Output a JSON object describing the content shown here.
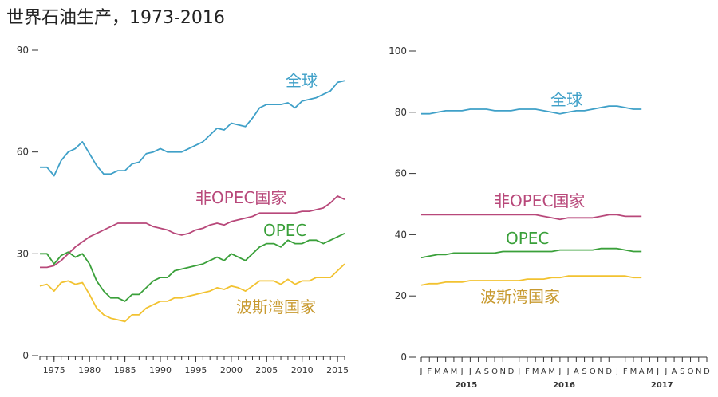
{
  "title": "世界石油生产，1973-2016",
  "chart_data": [
    {
      "type": "line",
      "x": [
        1973,
        1974,
        1975,
        1976,
        1977,
        1978,
        1979,
        1980,
        1981,
        1982,
        1983,
        1984,
        1985,
        1986,
        1987,
        1988,
        1989,
        1990,
        1991,
        1992,
        1993,
        1994,
        1995,
        1996,
        1997,
        1998,
        1999,
        2000,
        2001,
        2002,
        2003,
        2004,
        2005,
        2006,
        2007,
        2008,
        2009,
        2010,
        2011,
        2012,
        2013,
        2014,
        2015,
        2016
      ],
      "xticks": [
        1975,
        1980,
        1985,
        1990,
        1995,
        2000,
        2005,
        2010,
        2015
      ],
      "ylim": [
        0,
        90
      ],
      "yticks": [
        0,
        30,
        60,
        90
      ],
      "series": [
        {
          "name": "全球",
          "color": "#3fa0c8",
          "values": [
            55.5,
            55.5,
            53,
            57.5,
            60,
            61,
            63,
            59.5,
            56,
            53.5,
            53.5,
            54.5,
            54.5,
            56.5,
            57,
            59.5,
            60,
            61,
            60,
            60,
            60,
            61,
            62,
            63,
            65,
            67,
            66.5,
            68.5,
            68,
            67.5,
            70,
            73,
            74,
            74,
            74,
            74.5,
            73,
            75,
            75.5,
            76,
            77,
            78,
            80.5,
            81
          ]
        },
        {
          "name": "非OPEC国家",
          "color": "#b8487a",
          "values": [
            26,
            26,
            26.5,
            28,
            30,
            32,
            33.5,
            35,
            36,
            37,
            38,
            39,
            39,
            39,
            39,
            39,
            38,
            37.5,
            37,
            36,
            35.5,
            36,
            37,
            37.5,
            38.5,
            39,
            38.5,
            39.5,
            40,
            40.5,
            41,
            42,
            42,
            42,
            42,
            42,
            42,
            42.5,
            42.5,
            43,
            43.5,
            45,
            47,
            46
          ]
        },
        {
          "name": "OPEC",
          "color": "#3aa03a",
          "values": [
            30,
            30,
            27,
            29.5,
            30.5,
            29,
            30,
            27,
            22,
            19,
            17,
            17,
            16,
            18,
            18,
            20,
            22,
            23,
            23,
            25,
            25.5,
            26,
            26.5,
            27,
            28,
            29,
            28,
            30,
            29,
            28,
            30,
            32,
            33,
            33,
            32,
            34,
            33,
            33,
            34,
            34,
            33,
            34,
            35,
            36
          ]
        },
        {
          "name": "波斯湾国家",
          "color": "#f2c230",
          "values": [
            20.5,
            21,
            19,
            21.5,
            22,
            21,
            21.5,
            18,
            14,
            12,
            11,
            10.5,
            10,
            12,
            12,
            14,
            15,
            16,
            16,
            17,
            17,
            17.5,
            18,
            18.5,
            19,
            20,
            19.5,
            20.5,
            20,
            19,
            20.5,
            22,
            22,
            22,
            21,
            22.5,
            21,
            22,
            22,
            23,
            23,
            23,
            25,
            27
          ]
        }
      ],
      "annotations": [
        {
          "text": "全球",
          "color": "#3fa0c8"
        },
        {
          "text": "非OPEC国家",
          "color": "#b8487a"
        },
        {
          "text": "OPEC",
          "color": "#3aa03a"
        },
        {
          "text": "波斯湾国家",
          "color": "#c89a30"
        }
      ]
    },
    {
      "type": "line",
      "months": [
        "J",
        "F",
        "M",
        "A",
        "M",
        "J",
        "J",
        "A",
        "S",
        "O",
        "N",
        "D",
        "J",
        "F",
        "M",
        "A",
        "M",
        "J",
        "J",
        "A",
        "S",
        "O",
        "N",
        "D",
        "J",
        "F",
        "M",
        "A",
        "M",
        "J",
        "J",
        "A",
        "S",
        "O",
        "N",
        "D"
      ],
      "year_labels": [
        "2015",
        "2016",
        "2017"
      ],
      "ylim": [
        0,
        100
      ],
      "yticks": [
        0,
        20,
        40,
        60,
        80,
        100
      ],
      "series": [
        {
          "name": "全球",
          "color": "#3fa0c8",
          "values": [
            79.5,
            79.5,
            80,
            80.5,
            80.5,
            80.5,
            81,
            81,
            81,
            80.5,
            80.5,
            80.5,
            81,
            81,
            81,
            80.5,
            80,
            79.5,
            80,
            80.5,
            80.5,
            81,
            81.5,
            82,
            82,
            81.5,
            81,
            81
          ]
        },
        {
          "name": "非OPEC国家",
          "color": "#b8487a",
          "values": [
            46.5,
            46.5,
            46.5,
            46.5,
            46.5,
            46.5,
            46.5,
            46.5,
            46.5,
            46.5,
            46.5,
            46.5,
            46.5,
            46.5,
            46.5,
            46,
            45.5,
            45,
            45.5,
            45.5,
            45.5,
            45.5,
            46,
            46.5,
            46.5,
            46,
            46,
            46
          ]
        },
        {
          "name": "OPEC",
          "color": "#3aa03a",
          "values": [
            32.5,
            33,
            33.5,
            33.5,
            34,
            34,
            34,
            34,
            34,
            34,
            34.5,
            34.5,
            34.5,
            34.5,
            34.5,
            34.5,
            34.5,
            35,
            35,
            35,
            35,
            35,
            35.5,
            35.5,
            35.5,
            35,
            34.5,
            34.5
          ]
        },
        {
          "name": "波斯湾国家",
          "color": "#f2c230",
          "values": [
            23.5,
            24,
            24,
            24.5,
            24.5,
            24.5,
            25,
            25,
            25,
            25,
            25,
            25,
            25,
            25.5,
            25.5,
            25.5,
            26,
            26,
            26.5,
            26.5,
            26.5,
            26.5,
            26.5,
            26.5,
            26.5,
            26.5,
            26,
            26
          ]
        }
      ],
      "annotations": [
        {
          "text": "全球",
          "color": "#3fa0c8"
        },
        {
          "text": "非OPEC国家",
          "color": "#b8487a"
        },
        {
          "text": "OPEC",
          "color": "#3aa03a"
        },
        {
          "text": "波斯湾国家",
          "color": "#c89a30"
        }
      ]
    }
  ]
}
